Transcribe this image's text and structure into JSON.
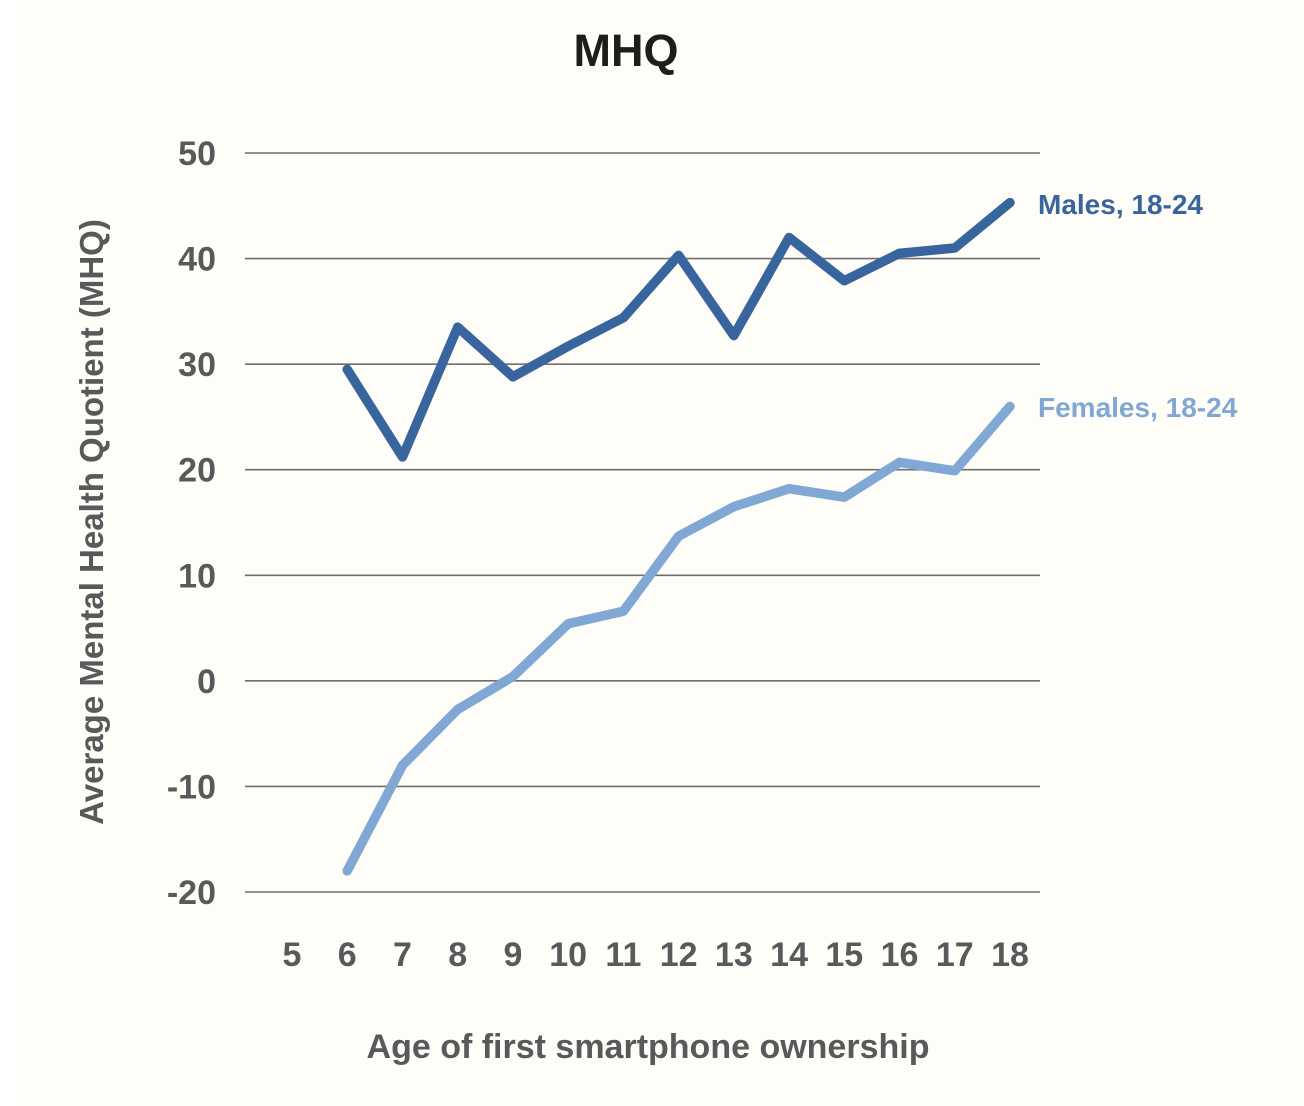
{
  "page": {
    "background_color": "#fffdf8",
    "left_strip_color": "#ffffff"
  },
  "chart_data": {
    "type": "line",
    "title": "MHQ",
    "xlabel": "Age of first smartphone ownership",
    "ylabel": "Average Mental Health Quotient (MHQ)",
    "grid": true,
    "xlim": [
      5,
      18
    ],
    "ylim": [
      -20,
      50
    ],
    "x_ticks": [
      5,
      6,
      7,
      8,
      9,
      10,
      11,
      12,
      13,
      14,
      15,
      16,
      17,
      18
    ],
    "y_ticks": [
      50,
      40,
      30,
      20,
      10,
      0,
      -10,
      -20
    ],
    "x": [
      6,
      7,
      8,
      9,
      10,
      11,
      12,
      13,
      14,
      15,
      16,
      17,
      18
    ],
    "series": [
      {
        "name": "Males, 18-24",
        "color": "#39659f",
        "values": [
          29.5,
          21.2,
          33.5,
          28.8,
          31.7,
          34.4,
          40.3,
          32.7,
          42.0,
          37.9,
          40.5,
          41.0,
          45.3
        ]
      },
      {
        "name": "Females, 18-24",
        "color": "#81a8d4",
        "values": [
          -18.0,
          -8.0,
          -2.7,
          0.4,
          5.4,
          6.6,
          13.7,
          16.5,
          18.2,
          17.4,
          20.7,
          19.9,
          26.0
        ]
      }
    ],
    "legend_position": "right-of-line-end",
    "title_color": "#1d1d1b",
    "text_color": "#58595b",
    "grid_color": "#6e6e6e"
  }
}
